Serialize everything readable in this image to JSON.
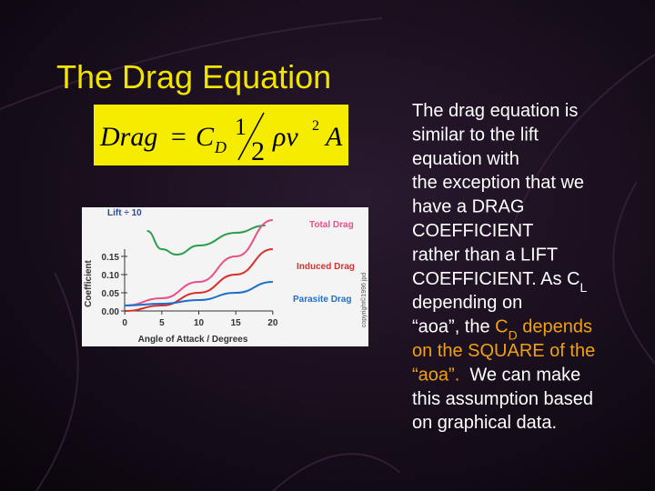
{
  "title": "The Drag Equation",
  "equation": {
    "parts": [
      "Drag",
      "=",
      "C",
      "D",
      "1",
      "2",
      "ρv",
      "2",
      "A"
    ]
  },
  "figure": {
    "type": "line",
    "ylabel": "Coefficient",
    "xlabel": "Angle of Attack / Degrees",
    "credit": "copyright©1996 jpd",
    "xlim": [
      -1.5,
      21
    ],
    "ylim": [
      -0.01,
      0.27
    ],
    "xticks": [
      0,
      5,
      10,
      15,
      20
    ],
    "yticks": [
      {
        "value": 0.15,
        "label": "0.15"
      },
      {
        "value": 0.1,
        "label": "0.10"
      },
      {
        "value": 0.05,
        "label": "0.05"
      },
      {
        "value": 0,
        "label": "0.00"
      }
    ],
    "series": [
      {
        "name": "Lift ÷ 10",
        "color": "#2e9e4e",
        "x": [
          3,
          5,
          7,
          10,
          15,
          19
        ],
        "values": [
          0.22,
          0.17,
          0.155,
          0.18,
          0.215,
          0.235
        ]
      },
      {
        "name": "Total Drag",
        "color": "#e8508a",
        "x": [
          0,
          5,
          10,
          15,
          20
        ],
        "values": [
          0.015,
          0.035,
          0.08,
          0.15,
          0.25
        ]
      },
      {
        "name": "Induced Drag",
        "color": "#d8302c",
        "x": [
          0,
          5,
          10,
          15,
          20
        ],
        "values": [
          0,
          0.015,
          0.05,
          0.1,
          0.17
        ]
      },
      {
        "name": "Parasite Drag",
        "color": "#1f6fc9",
        "x": [
          0,
          5,
          10,
          15,
          20
        ],
        "values": [
          0.015,
          0.02,
          0.03,
          0.05,
          0.08
        ]
      }
    ]
  },
  "body": {
    "lines": [
      [
        {
          "text": "The drag equation is"
        }
      ],
      [
        {
          "text": "similar to the lift"
        }
      ],
      [
        {
          "text": "equation with"
        }
      ],
      [
        {
          "text": "the exception that we"
        }
      ],
      [
        {
          "text": "have a DRAG"
        }
      ],
      [
        {
          "text": "COEFFICIENT"
        }
      ],
      [
        {
          "text": "rather than a LIFT"
        }
      ],
      [
        {
          "text": "COEFFICIENT. As C"
        },
        {
          "text": "L",
          "sub": true
        }
      ],
      [
        {
          "text": "depending on"
        }
      ],
      [
        {
          "text": "“aoa”, the "
        },
        {
          "text": "C",
          "highlight": true
        },
        {
          "text": "D",
          "highlight": true,
          "sub": true
        },
        {
          "text": " depends",
          "highlight": true
        }
      ],
      [
        {
          "text": "on the SQUARE of the",
          "highlight": true
        }
      ],
      [
        {
          "text": "“aoa”.",
          "highlight": true
        },
        {
          "text": "  We can make"
        }
      ],
      [
        {
          "text": "this assumption based"
        }
      ],
      [
        {
          "text": "on graphical data."
        }
      ]
    ]
  }
}
